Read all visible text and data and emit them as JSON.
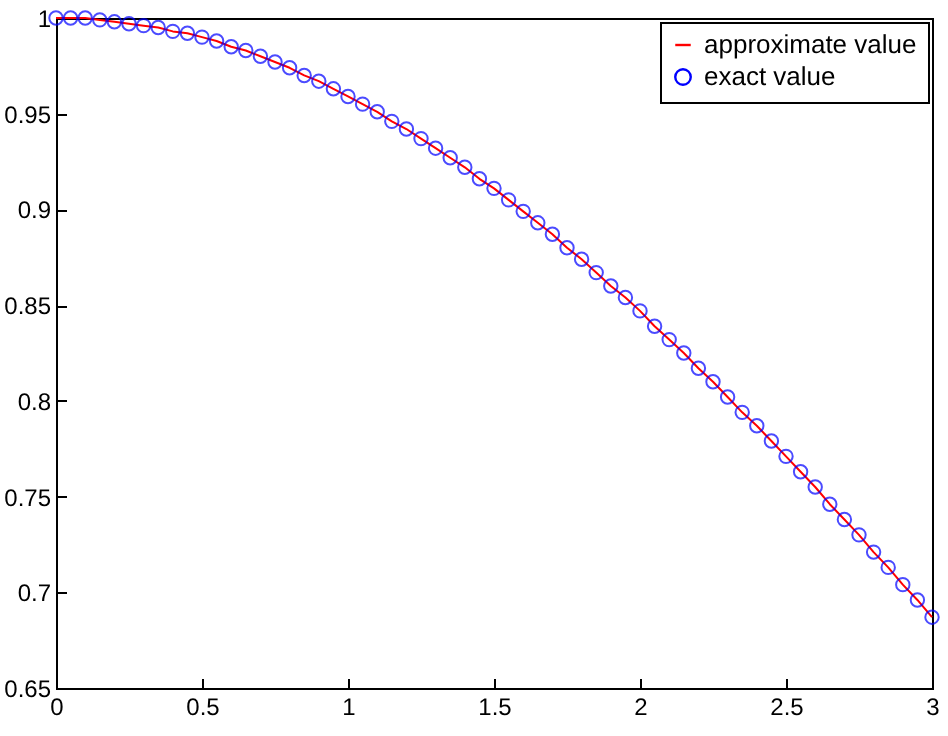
{
  "chart_data": {
    "type": "line",
    "x": [
      0,
      0.05,
      0.1,
      0.15,
      0.2,
      0.25,
      0.3,
      0.35,
      0.4,
      0.45,
      0.5,
      0.55,
      0.6,
      0.65,
      0.7,
      0.75,
      0.8,
      0.85,
      0.9,
      0.95,
      1,
      1.05,
      1.1,
      1.15,
      1.2,
      1.25,
      1.3,
      1.35,
      1.4,
      1.45,
      1.5,
      1.55,
      1.6,
      1.65,
      1.7,
      1.75,
      1.8,
      1.85,
      1.9,
      1.95,
      2,
      2.05,
      2.1,
      2.15,
      2.2,
      2.25,
      2.3,
      2.35,
      2.4,
      2.45,
      2.5,
      2.55,
      2.6,
      2.65,
      2.7,
      2.75,
      2.8,
      2.85,
      2.9,
      2.95,
      3
    ],
    "series": [
      {
        "name": "approximate value",
        "type": "line",
        "color": "#ff0000",
        "line_style": "solid",
        "marker": "none",
        "values": [
          1,
          1,
          1,
          0.999,
          0.998,
          0.997,
          0.996,
          0.995,
          0.993,
          0.992,
          0.99,
          0.988,
          0.985,
          0.983,
          0.98,
          0.977,
          0.974,
          0.97,
          0.967,
          0.963,
          0.959,
          0.955,
          0.951,
          0.946,
          0.942,
          0.937,
          0.932,
          0.927,
          0.922,
          0.916,
          0.911,
          0.905,
          0.899,
          0.893,
          0.887,
          0.88,
          0.874,
          0.867,
          0.86,
          0.854,
          0.847,
          0.839,
          0.832,
          0.825,
          0.817,
          0.81,
          0.802,
          0.794,
          0.787,
          0.779,
          0.771,
          0.763,
          0.755,
          0.746,
          0.738,
          0.73,
          0.721,
          0.713,
          0.704,
          0.696,
          0.687
        ]
      },
      {
        "name": "exact value",
        "type": "scatter",
        "color": "#0000ff",
        "marker": "circle",
        "values": [
          1,
          1,
          1,
          0.999,
          0.998,
          0.997,
          0.996,
          0.995,
          0.993,
          0.992,
          0.99,
          0.988,
          0.985,
          0.983,
          0.98,
          0.977,
          0.974,
          0.97,
          0.967,
          0.963,
          0.959,
          0.955,
          0.951,
          0.946,
          0.942,
          0.937,
          0.932,
          0.927,
          0.922,
          0.916,
          0.911,
          0.905,
          0.899,
          0.893,
          0.887,
          0.88,
          0.874,
          0.867,
          0.86,
          0.854,
          0.847,
          0.839,
          0.832,
          0.825,
          0.817,
          0.81,
          0.802,
          0.794,
          0.787,
          0.779,
          0.771,
          0.763,
          0.755,
          0.746,
          0.738,
          0.73,
          0.721,
          0.713,
          0.704,
          0.696,
          0.687
        ]
      }
    ],
    "xlim": [
      0,
      3
    ],
    "xticks": [
      0,
      0.5,
      1,
      1.5,
      2,
      2.5,
      3
    ],
    "ylim": [
      0.65,
      1
    ],
    "yticks": [
      0.65,
      0.7,
      0.75,
      0.8,
      0.85,
      0.9,
      0.95,
      1
    ],
    "legend": "top right",
    "grid": false
  }
}
